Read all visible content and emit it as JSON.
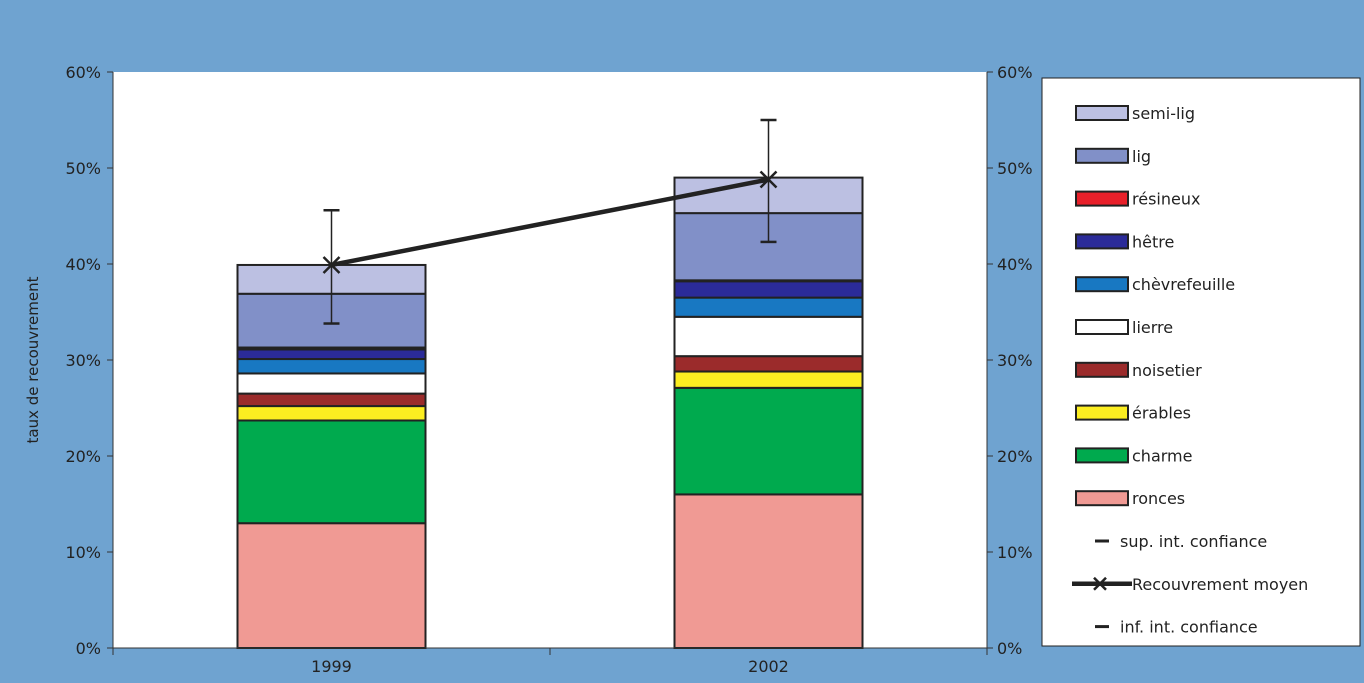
{
  "chart_data": {
    "type": "bar",
    "stacked": true,
    "categories": [
      "1999",
      "2002"
    ],
    "ylabel": "taux de recouvrement",
    "ylim": [
      0,
      0.6
    ],
    "y_ticks": [
      "0%",
      "10%",
      "20%",
      "30%",
      "40%",
      "50%",
      "60%"
    ],
    "y2_ticks": [
      "0%",
      "10%",
      "20%",
      "30%",
      "40%",
      "50%",
      "60%"
    ],
    "legend_position": "right",
    "series": [
      {
        "name": "ronces",
        "color": "#f09a94",
        "values": [
          0.13,
          0.16
        ]
      },
      {
        "name": "charme",
        "color": "#00aa4e",
        "values": [
          0.107,
          0.111
        ]
      },
      {
        "name": "érables",
        "color": "#fcee21",
        "values": [
          0.015,
          0.017
        ]
      },
      {
        "name": "noisetier",
        "color": "#9b2b2b",
        "values": [
          0.013,
          0.016
        ]
      },
      {
        "name": "lierre",
        "color": "#ffffff",
        "values": [
          0.021,
          0.041
        ]
      },
      {
        "name": "chèvrefeuille",
        "color": "#1878c2",
        "values": [
          0.015,
          0.02
        ]
      },
      {
        "name": "hêtre",
        "color": "#2b2b99",
        "values": [
          0.01,
          0.017
        ]
      },
      {
        "name": "résineux",
        "color": "#e8202a",
        "values": [
          0.002,
          0.001
        ]
      },
      {
        "name": "lig",
        "color": "#8190c8",
        "values": [
          0.056,
          0.07
        ]
      },
      {
        "name": "semi-lig",
        "color": "#bcc0e2",
        "values": [
          0.03,
          0.037
        ]
      }
    ],
    "line_series": {
      "name": "Recouvrement moyen",
      "values": [
        0.399,
        0.488
      ]
    },
    "upper_ci": {
      "name": "sup. int. confiance",
      "values": [
        0.456,
        0.55
      ]
    },
    "lower_ci": {
      "name": "inf. int. confiance",
      "values": [
        0.338,
        0.423
      ]
    },
    "legend_order": [
      "semi-lig",
      "lig",
      "résineux",
      "hêtre",
      "chèvrefeuille",
      "lierre",
      "noisetier",
      "érables",
      "charme",
      "ronces",
      "sup. int. confiance",
      "Recouvrement moyen",
      "inf. int. confiance"
    ]
  }
}
